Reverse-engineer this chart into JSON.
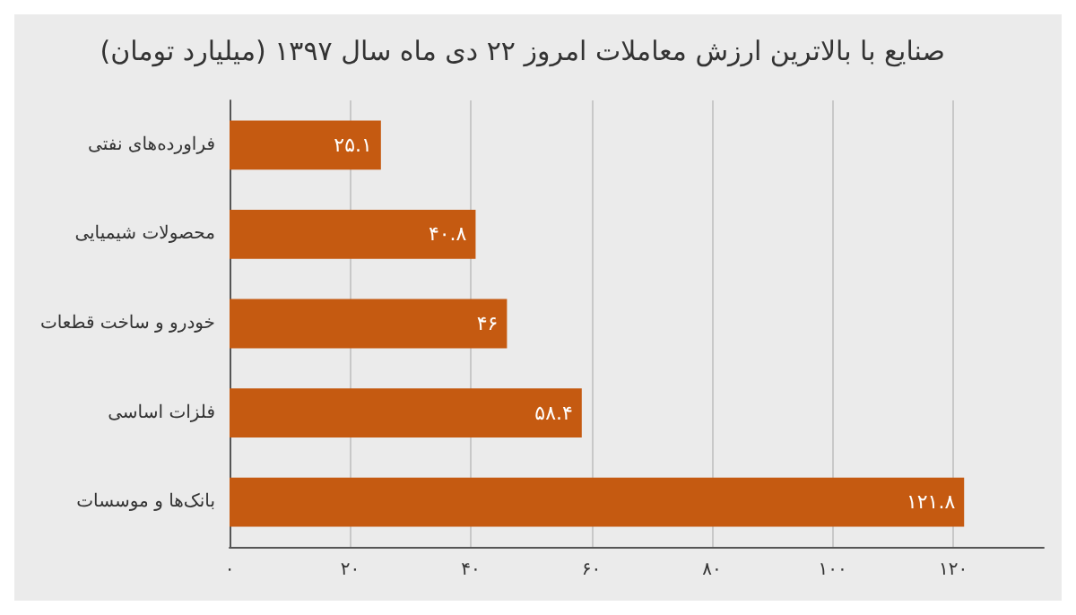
{
  "chart_data": {
    "type": "bar",
    "orientation": "horizontal",
    "title": "صنایع با بالاترین ارزش معاملات امروز ۲۲ دی ماه سال ۱۳۹۷ (میلیارد تومان)",
    "categories": [
      "فراورده‌های نفتی",
      "محصولات شیمیایی",
      "خودرو و ساخت قطعات",
      "فلزات اساسی",
      "بانک‌ها و موسسات"
    ],
    "values": [
      25.1,
      40.8,
      46,
      58.4,
      121.8
    ],
    "value_labels": [
      "۲۵.۱",
      "۴۰.۸",
      "۴۶",
      "۵۸.۴",
      "۱۲۱.۸"
    ],
    "color": "#c55a11",
    "xlim": [
      0,
      135
    ],
    "xticks": [
      {
        "value": 0,
        "label": "۰"
      },
      {
        "value": 20,
        "label": "۲۰"
      },
      {
        "value": 40,
        "label": "۴۰"
      },
      {
        "value": 60,
        "label": "۶۰"
      },
      {
        "value": 80,
        "label": "۸۰"
      },
      {
        "value": 100,
        "label": "۱۰۰"
      },
      {
        "value": 120,
        "label": "۱۲۰"
      }
    ],
    "grid": "x"
  }
}
